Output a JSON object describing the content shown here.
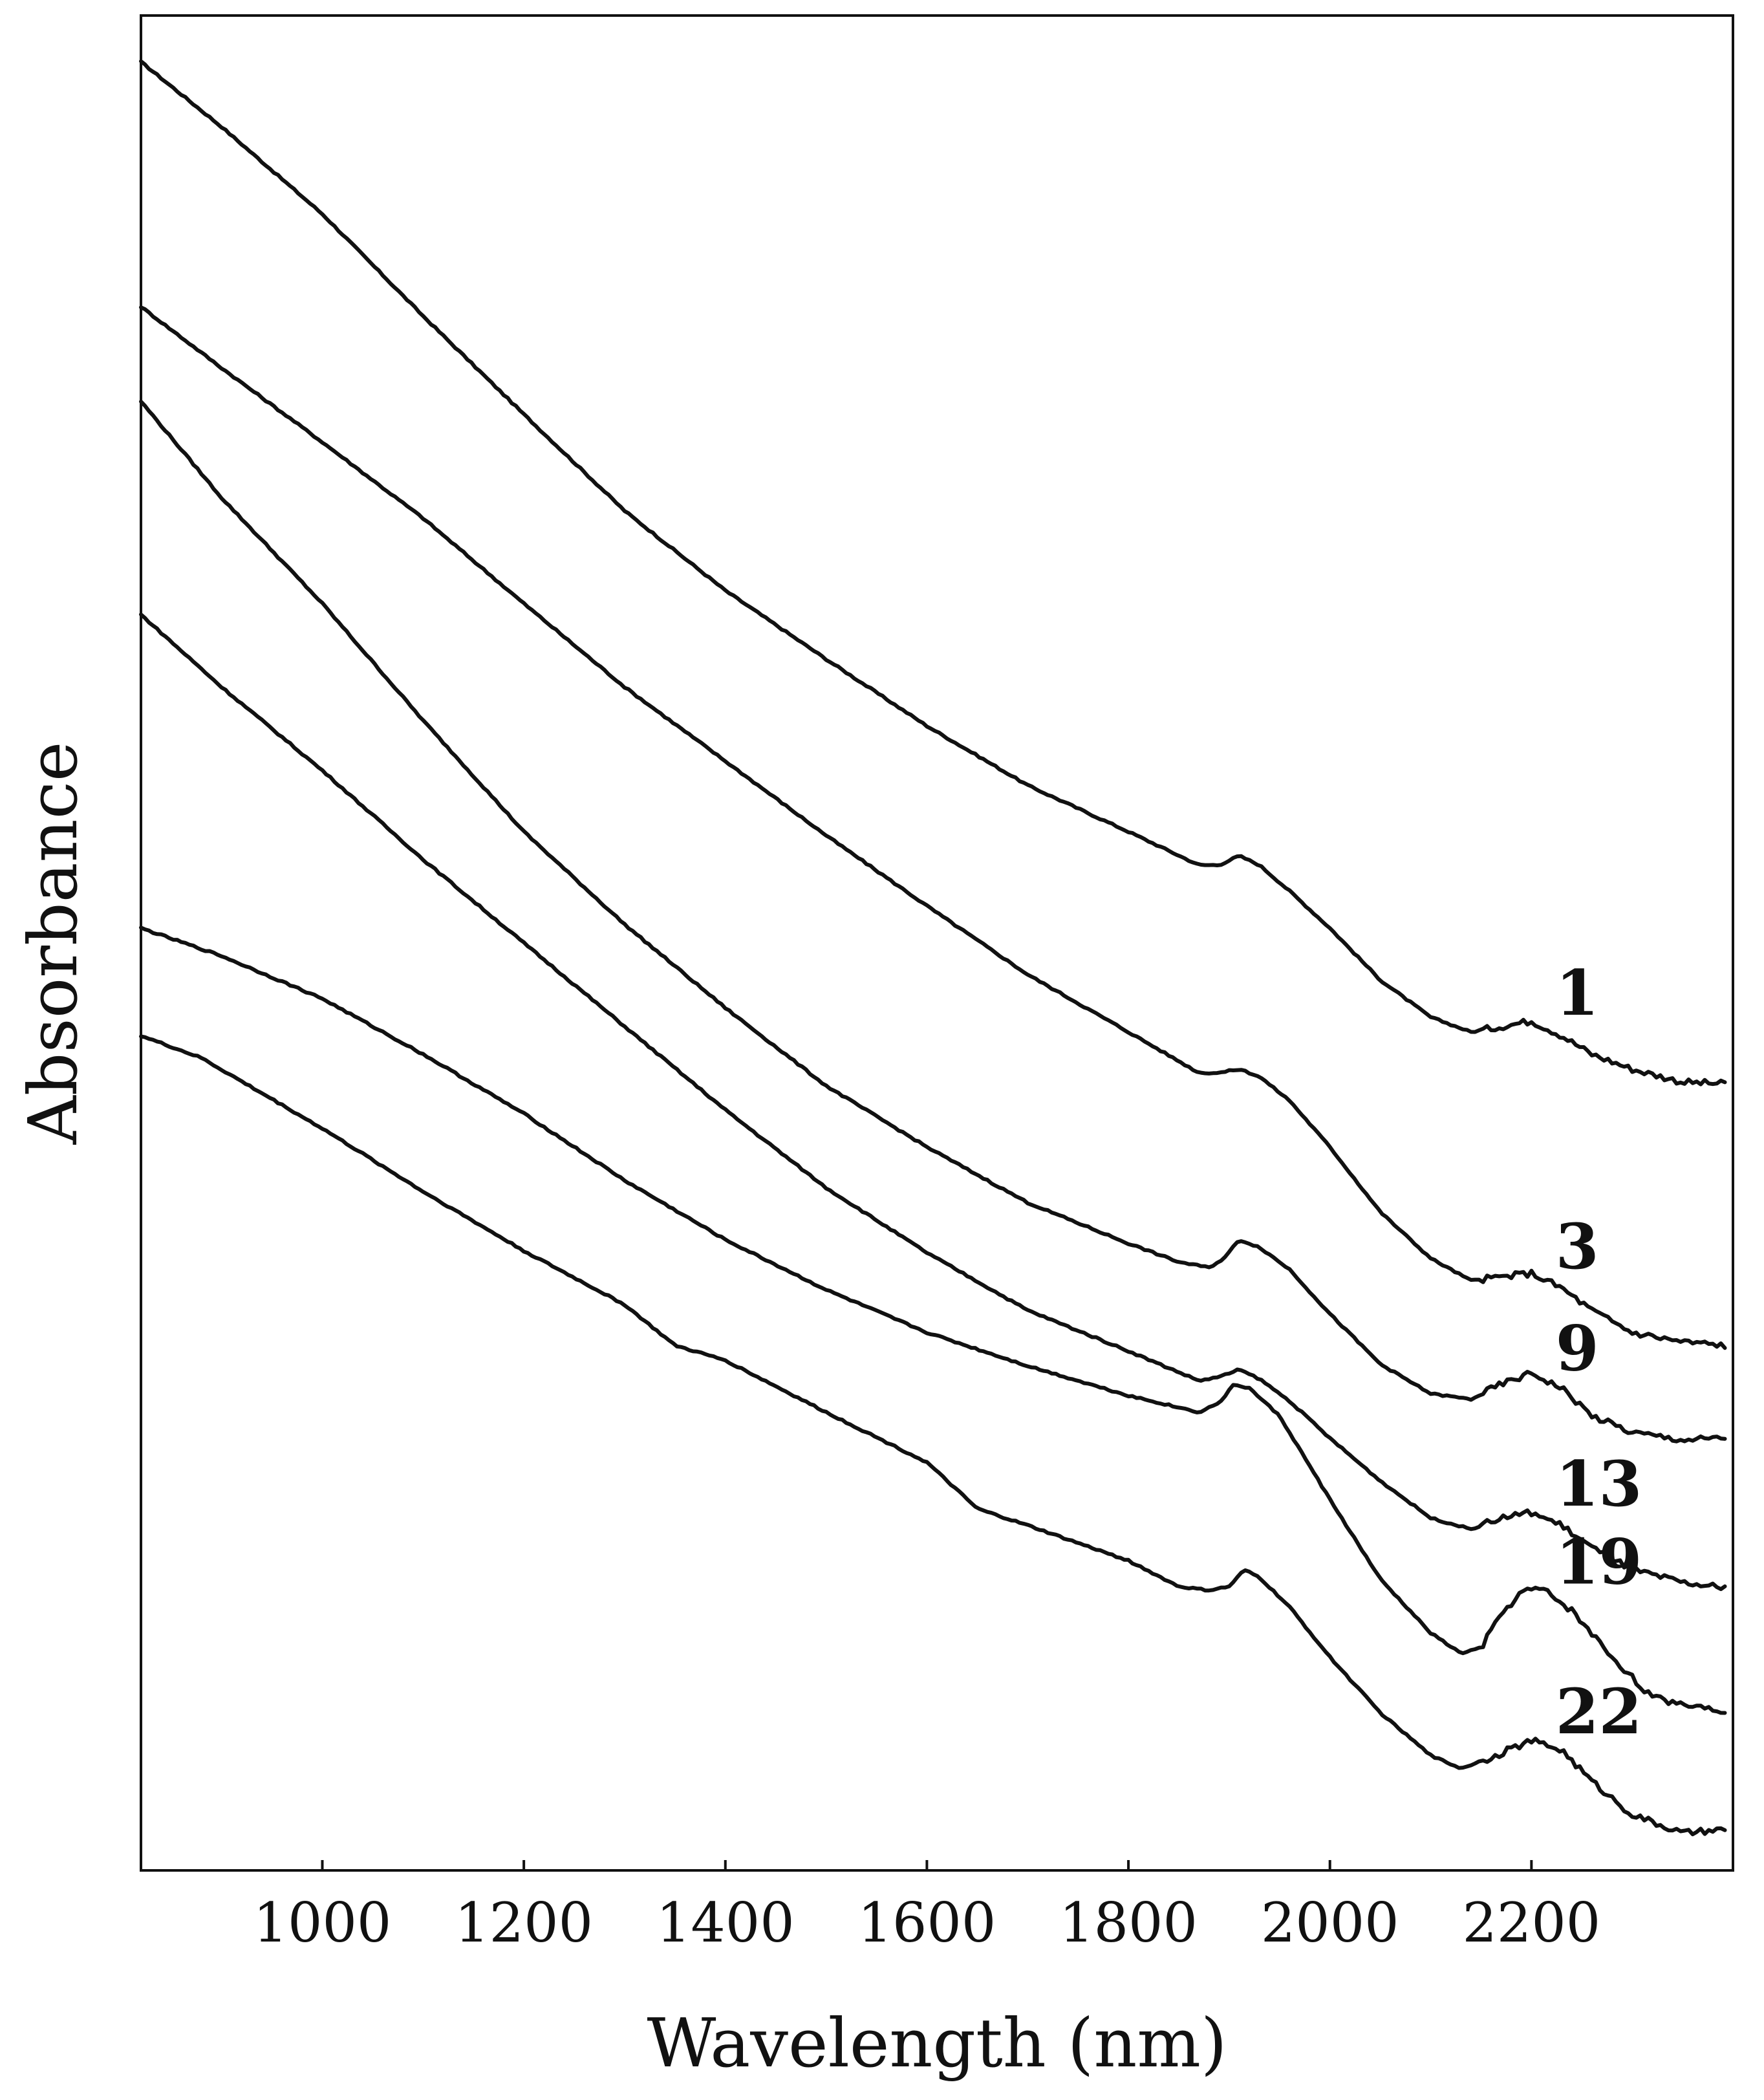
{
  "chart_data": {
    "type": "line",
    "title": "",
    "xlabel": "Wavelength (nm)",
    "ylabel": "Absorbance",
    "xlim": [
      820,
      2400
    ],
    "ylim": [
      0,
      1
    ],
    "xticks": [
      "1000",
      "1200",
      "1400",
      "1600",
      "1800",
      "2000",
      "2200"
    ],
    "yticks": [],
    "grid": false,
    "legend": "none",
    "line_color": "#111111",
    "series": [
      {
        "label": "1",
        "points": [
          [
            820,
            0.975
          ],
          [
            900,
            0.94
          ],
          [
            1000,
            0.893
          ],
          [
            1100,
            0.838
          ],
          [
            1200,
            0.785
          ],
          [
            1300,
            0.733
          ],
          [
            1400,
            0.69
          ],
          [
            1500,
            0.653
          ],
          [
            1600,
            0.617
          ],
          [
            1700,
            0.585
          ],
          [
            1800,
            0.56
          ],
          [
            1870,
            0.542
          ],
          [
            1890,
            0.542
          ],
          [
            1910,
            0.547
          ],
          [
            1930,
            0.542
          ],
          [
            1960,
            0.528
          ],
          [
            2000,
            0.508
          ],
          [
            2050,
            0.48
          ],
          [
            2100,
            0.46
          ],
          [
            2140,
            0.452
          ],
          [
            2170,
            0.455
          ],
          [
            2200,
            0.458
          ],
          [
            2230,
            0.45
          ],
          [
            2260,
            0.44
          ],
          [
            2300,
            0.432
          ],
          [
            2350,
            0.425
          ],
          [
            2395,
            0.424
          ]
        ]
      },
      {
        "label": "3",
        "points": [
          [
            820,
            0.843
          ],
          [
            900,
            0.81
          ],
          [
            1000,
            0.77
          ],
          [
            1100,
            0.729
          ],
          [
            1200,
            0.683
          ],
          [
            1300,
            0.638
          ],
          [
            1400,
            0.598
          ],
          [
            1500,
            0.558
          ],
          [
            1600,
            0.52
          ],
          [
            1700,
            0.483
          ],
          [
            1800,
            0.452
          ],
          [
            1870,
            0.43
          ],
          [
            1890,
            0.43
          ],
          [
            1910,
            0.432
          ],
          [
            1930,
            0.428
          ],
          [
            1960,
            0.415
          ],
          [
            2000,
            0.39
          ],
          [
            2050,
            0.355
          ],
          [
            2100,
            0.33
          ],
          [
            2140,
            0.318
          ],
          [
            2170,
            0.32
          ],
          [
            2200,
            0.322
          ],
          [
            2230,
            0.314
          ],
          [
            2260,
            0.302
          ],
          [
            2300,
            0.29
          ],
          [
            2350,
            0.285
          ],
          [
            2395,
            0.283
          ]
        ]
      },
      {
        "label": "9",
        "points": [
          [
            820,
            0.792
          ],
          [
            900,
            0.74
          ],
          [
            1000,
            0.683
          ],
          [
            1100,
            0.62
          ],
          [
            1200,
            0.56
          ],
          [
            1300,
            0.51
          ],
          [
            1400,
            0.465
          ],
          [
            1500,
            0.423
          ],
          [
            1600,
            0.39
          ],
          [
            1700,
            0.36
          ],
          [
            1800,
            0.338
          ],
          [
            1850,
            0.328
          ],
          [
            1880,
            0.325
          ],
          [
            1895,
            0.33
          ],
          [
            1910,
            0.34
          ],
          [
            1930,
            0.336
          ],
          [
            1960,
            0.324
          ],
          [
            2000,
            0.3
          ],
          [
            2050,
            0.273
          ],
          [
            2100,
            0.257
          ],
          [
            2140,
            0.254
          ],
          [
            2170,
            0.262
          ],
          [
            2200,
            0.268
          ],
          [
            2230,
            0.26
          ],
          [
            2260,
            0.245
          ],
          [
            2300,
            0.236
          ],
          [
            2350,
            0.232
          ],
          [
            2395,
            0.233
          ]
        ]
      },
      {
        "label": "13",
        "points": [
          [
            820,
            0.677
          ],
          [
            900,
            0.638
          ],
          [
            1000,
            0.593
          ],
          [
            1100,
            0.545
          ],
          [
            1200,
            0.5
          ],
          [
            1300,
            0.455
          ],
          [
            1400,
            0.41
          ],
          [
            1500,
            0.368
          ],
          [
            1600,
            0.333
          ],
          [
            1700,
            0.302
          ],
          [
            1800,
            0.28
          ],
          [
            1870,
            0.264
          ],
          [
            1890,
            0.266
          ],
          [
            1910,
            0.27
          ],
          [
            1930,
            0.265
          ],
          [
            1960,
            0.253
          ],
          [
            2000,
            0.233
          ],
          [
            2050,
            0.21
          ],
          [
            2100,
            0.19
          ],
          [
            2140,
            0.184
          ],
          [
            2170,
            0.19
          ],
          [
            2200,
            0.193
          ],
          [
            2230,
            0.186
          ],
          [
            2260,
            0.174
          ],
          [
            2300,
            0.162
          ],
          [
            2350,
            0.155
          ],
          [
            2395,
            0.152
          ]
        ]
      },
      {
        "label": "19",
        "points": [
          [
            820,
            0.508
          ],
          [
            900,
            0.493
          ],
          [
            1000,
            0.47
          ],
          [
            1100,
            0.44
          ],
          [
            1200,
            0.408
          ],
          [
            1300,
            0.372
          ],
          [
            1400,
            0.34
          ],
          [
            1500,
            0.313
          ],
          [
            1600,
            0.29
          ],
          [
            1700,
            0.272
          ],
          [
            1800,
            0.256
          ],
          [
            1870,
            0.247
          ],
          [
            1890,
            0.252
          ],
          [
            1905,
            0.262
          ],
          [
            1920,
            0.26
          ],
          [
            1950,
            0.245
          ],
          [
            2000,
            0.2
          ],
          [
            2050,
            0.157
          ],
          [
            2100,
            0.128
          ],
          [
            2130,
            0.117
          ],
          [
            2150,
            0.12
          ],
          [
            2170,
            0.138
          ],
          [
            2190,
            0.15
          ],
          [
            2210,
            0.152
          ],
          [
            2240,
            0.14
          ],
          [
            2280,
            0.115
          ],
          [
            2320,
            0.093
          ],
          [
            2360,
            0.089
          ],
          [
            2395,
            0.086
          ]
        ]
      },
      {
        "label": "22",
        "points": [
          [
            820,
            0.45
          ],
          [
            880,
            0.438
          ],
          [
            1000,
            0.4
          ],
          [
            1100,
            0.366
          ],
          [
            1200,
            0.334
          ],
          [
            1300,
            0.305
          ],
          [
            1350,
            0.283
          ],
          [
            1400,
            0.275
          ],
          [
            1500,
            0.247
          ],
          [
            1600,
            0.22
          ],
          [
            1650,
            0.195
          ],
          [
            1700,
            0.186
          ],
          [
            1800,
            0.167
          ],
          [
            1850,
            0.153
          ],
          [
            1880,
            0.151
          ],
          [
            1900,
            0.153
          ],
          [
            1915,
            0.162
          ],
          [
            1930,
            0.158
          ],
          [
            1960,
            0.142
          ],
          [
            2000,
            0.115
          ],
          [
            2050,
            0.085
          ],
          [
            2100,
            0.062
          ],
          [
            2130,
            0.055
          ],
          [
            2160,
            0.061
          ],
          [
            2200,
            0.07
          ],
          [
            2230,
            0.065
          ],
          [
            2260,
            0.048
          ],
          [
            2300,
            0.03
          ],
          [
            2350,
            0.02
          ],
          [
            2395,
            0.022
          ]
        ]
      }
    ]
  }
}
